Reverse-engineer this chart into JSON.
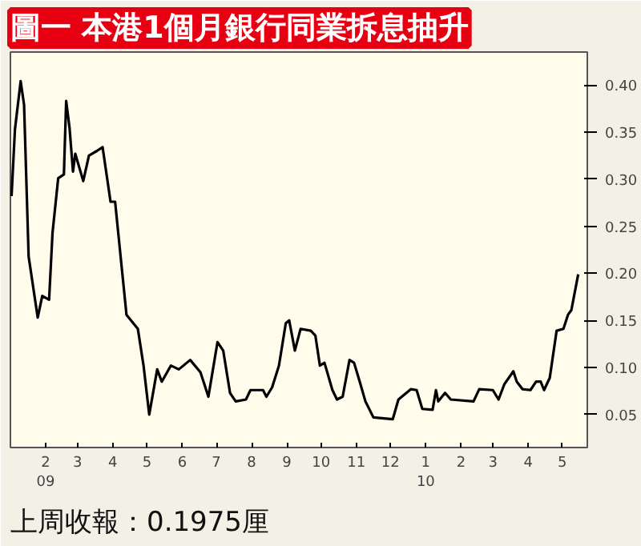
{
  "chart_data": {
    "type": "line",
    "title": "圖一 本港1個月銀行同業拆息抽升",
    "annotations": [
      "上周收報：0.1975厘"
    ],
    "x": [
      "2009-01-02",
      "2009-01-05",
      "2009-01-10",
      "2009-01-13",
      "2009-01-17",
      "2009-01-25",
      "2009-01-29",
      "2009-02-04",
      "2009-02-07",
      "2009-02-12",
      "2009-02-17",
      "2009-02-19",
      "2009-02-22",
      "2009-02-25",
      "2009-02-27",
      "2009-03-06",
      "2009-03-11",
      "2009-03-18",
      "2009-03-23",
      "2009-03-30",
      "2009-04-03",
      "2009-04-13",
      "2009-04-23",
      "2009-04-28",
      "2009-05-03",
      "2009-05-10",
      "2009-05-14",
      "2009-05-22",
      "2009-05-29",
      "2009-06-08",
      "2009-06-17",
      "2009-06-24",
      "2009-07-02",
      "2009-07-07",
      "2009-07-13",
      "2009-07-18",
      "2009-07-27",
      "2009-07-31",
      "2009-08-11",
      "2009-08-14",
      "2009-08-19",
      "2009-08-25",
      "2009-08-31",
      "2009-09-03",
      "2009-09-08",
      "2009-09-13",
      "2009-09-22",
      "2009-09-26",
      "2009-09-30",
      "2009-10-04",
      "2009-10-11",
      "2009-10-15",
      "2009-10-20",
      "2009-10-26",
      "2009-10-30",
      "2009-11-04",
      "2009-11-09",
      "2009-11-16",
      "2009-12-03",
      "2009-12-08",
      "2009-12-15",
      "2009-12-19",
      "2009-12-24",
      "2009-12-29",
      "2010-01-07",
      "2010-01-10",
      "2010-01-12",
      "2010-01-18",
      "2010-01-23",
      "2010-02-12",
      "2010-02-17",
      "2010-03-01",
      "2010-03-06",
      "2010-03-11",
      "2010-03-19",
      "2010-03-22",
      "2010-03-27",
      "2010-04-03",
      "2010-04-08",
      "2010-04-12",
      "2010-04-15",
      "2010-04-20",
      "2010-04-26",
      "2010-05-02",
      "2010-05-06",
      "2010-05-09",
      "2010-05-15"
    ],
    "series": [
      {
        "color": "#000000",
        "values": [
          0.282,
          0.353,
          0.404,
          0.379,
          0.218,
          0.153,
          0.176,
          0.172,
          0.243,
          0.301,
          0.305,
          0.383,
          0.354,
          0.308,
          0.327,
          0.298,
          0.325,
          0.33,
          0.334,
          0.276,
          0.276,
          0.156,
          0.141,
          0.102,
          0.05,
          0.098,
          0.085,
          0.102,
          0.098,
          0.108,
          0.095,
          0.069,
          0.127,
          0.118,
          0.073,
          0.064,
          0.066,
          0.076,
          0.076,
          0.069,
          0.079,
          0.102,
          0.147,
          0.15,
          0.118,
          0.141,
          0.139,
          0.134,
          0.102,
          0.105,
          0.076,
          0.066,
          0.069,
          0.108,
          0.105,
          0.085,
          0.064,
          0.047,
          0.045,
          0.066,
          0.073,
          0.077,
          0.076,
          0.056,
          0.055,
          0.076,
          0.064,
          0.073,
          0.066,
          0.064,
          0.077,
          0.076,
          0.066,
          0.082,
          0.096,
          0.085,
          0.077,
          0.076,
          0.085,
          0.085,
          0.076,
          0.089,
          0.139,
          0.141,
          0.156,
          0.161,
          0.199
        ]
      }
    ],
    "xlim": [
      "2009-01-01",
      "2010-05-23"
    ],
    "xticks": [
      {
        "value": "2009-02-01",
        "label": "2\n09"
      },
      {
        "value": "2009-03-01",
        "label": "3"
      },
      {
        "value": "2009-04-01",
        "label": "4"
      },
      {
        "value": "2009-05-01",
        "label": "5"
      },
      {
        "value": "2009-06-01",
        "label": "6"
      },
      {
        "value": "2009-07-01",
        "label": "7"
      },
      {
        "value": "2009-08-01",
        "label": "8"
      },
      {
        "value": "2009-09-01",
        "label": "9"
      },
      {
        "value": "2009-10-01",
        "label": "10"
      },
      {
        "value": "2009-11-01",
        "label": "11"
      },
      {
        "value": "2009-12-01",
        "label": "12"
      },
      {
        "value": "2010-01-01",
        "label": "1\n10"
      },
      {
        "value": "2010-02-01",
        "label": "2"
      },
      {
        "value": "2010-03-01",
        "label": "3"
      },
      {
        "value": "2010-04-01",
        "label": "4"
      },
      {
        "value": "2010-05-01",
        "label": "5"
      }
    ],
    "ylim": [
      0.015,
      0.435
    ],
    "yticks": [
      {
        "value": 0.05,
        "label": "0.05"
      },
      {
        "value": 0.1,
        "label": "0.10"
      },
      {
        "value": 0.15,
        "label": "0.15"
      },
      {
        "value": 0.2,
        "label": "0.20"
      },
      {
        "value": 0.25,
        "label": "0.25"
      },
      {
        "value": 0.3,
        "label": "0.30"
      },
      {
        "value": 0.35,
        "label": "0.35"
      },
      {
        "value": 0.4,
        "label": "0.40"
      }
    ],
    "grid": false
  }
}
